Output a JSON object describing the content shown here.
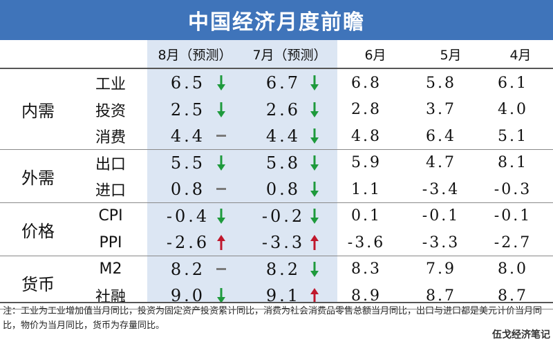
{
  "title": "中国经济月度前瞻",
  "columns": [
    "8月（预测）",
    "7月（预测）",
    "6月",
    "5月",
    "4月"
  ],
  "colors": {
    "title_bg": "#3f74ba",
    "highlight": "#dce6f3",
    "down": "#1e9a3c",
    "up": "#c0172c",
    "flat": "#7a7a7a"
  },
  "groups": [
    {
      "name": "内需",
      "rows": [
        {
          "label": "工业",
          "aug": "6.5",
          "aug_dir": "down",
          "jul": "6.7",
          "jul_dir": "down",
          "jun": "6.8",
          "may": "5.8",
          "apr": "6.1"
        },
        {
          "label": "投资",
          "aug": "2.5",
          "aug_dir": "down",
          "jul": "2.6",
          "jul_dir": "down",
          "jun": "2.8",
          "may": "3.7",
          "apr": "4.0"
        },
        {
          "label": "消费",
          "aug": "4.4",
          "aug_dir": "flat",
          "jul": "4.4",
          "jul_dir": "down",
          "jun": "4.8",
          "may": "6.4",
          "apr": "5.1"
        }
      ]
    },
    {
      "name": "外需",
      "rows": [
        {
          "label": "出口",
          "aug": "5.5",
          "aug_dir": "down",
          "jul": "5.8",
          "jul_dir": "down",
          "jun": "5.9",
          "may": "4.7",
          "apr": "8.1"
        },
        {
          "label": "进口",
          "aug": "0.8",
          "aug_dir": "flat",
          "jul": "0.8",
          "jul_dir": "down",
          "jun": "1.1",
          "may": "-3.4",
          "apr": "-0.3"
        }
      ]
    },
    {
      "name": "价格",
      "rows": [
        {
          "label": "CPI",
          "aug": "-0.4",
          "aug_dir": "down",
          "jul": "-0.2",
          "jul_dir": "down",
          "jun": "0.1",
          "may": "-0.1",
          "apr": "-0.1"
        },
        {
          "label": "PPI",
          "aug": "-2.6",
          "aug_dir": "up",
          "jul": "-3.3",
          "jul_dir": "up",
          "jun": "-3.6",
          "may": "-3.3",
          "apr": "-2.7"
        }
      ]
    },
    {
      "name": "货币",
      "rows": [
        {
          "label": "M2",
          "aug": "8.2",
          "aug_dir": "flat",
          "jul": "8.2",
          "jul_dir": "down",
          "jun": "8.3",
          "may": "7.9",
          "apr": "8.0"
        },
        {
          "label": "社融",
          "aug": "9.0",
          "aug_dir": "down",
          "jul": "9.1",
          "jul_dir": "up",
          "jun": "8.9",
          "may": "8.7",
          "apr": "8.7"
        }
      ]
    }
  ],
  "note": "注：工业为工业增加值当月同比，投资为固定资产投资累计同比，消费为社会消费品零售总额当月同比，出口与进口都是美元计价当月同比，物价为当月同比，货币为存量同比。",
  "watermark": "伍戈经济笔记"
}
